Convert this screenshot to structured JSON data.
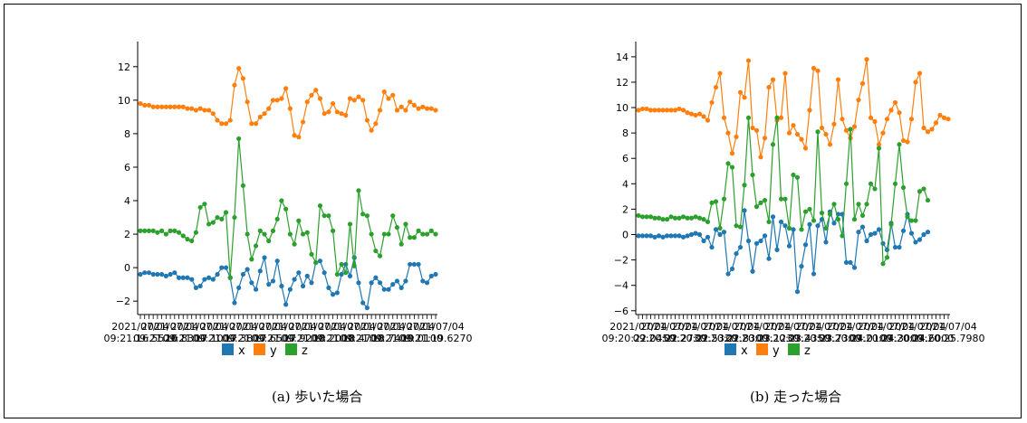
{
  "captions": {
    "left": "(a) 歩いた場合",
    "right": "(b) 走った場合"
  },
  "colors": {
    "x": "#1f77b4",
    "y": "#ff7f0e",
    "z": "#2ca02c"
  },
  "chart_data": [
    {
      "type": "line",
      "title": "",
      "xlabel": "",
      "ylabel": "",
      "ylim": [
        -2.8,
        13.5
      ],
      "yticks": [
        -2,
        0,
        2,
        4,
        6,
        8,
        10,
        12
      ],
      "x_tick_labels": [
        "2021/07/04\n09:21:16.5520",
        "2021/07/04\n09:21:16.8300",
        "2021/07/04\n09:21:17.1000",
        "2021/07/04\n09:21:17.3800",
        "2021/07/04\n09:21:17.6500",
        "2021/07/04\n09:21:17.9200",
        "2021/07/04\n09:21:18.2000",
        "2021/07/04\n09:21:18.4700",
        "2021/07/04\n09:21:18.7400",
        "2021/07/04\n09:21:19.0100",
        "2021/07/04\n09:21:19.6270"
      ],
      "legend_position": "bottom",
      "series": [
        {
          "name": "x",
          "color": "#1f77b4",
          "values": [
            -0.4,
            -0.3,
            -0.3,
            -0.4,
            -0.4,
            -0.4,
            -0.5,
            -0.4,
            -0.3,
            -0.6,
            -0.6,
            -0.6,
            -0.7,
            -1.2,
            -1.1,
            -0.7,
            -0.6,
            -0.7,
            -0.4,
            0.0,
            0.0,
            -0.6,
            -2.1,
            -1.2,
            -0.4,
            -0.1,
            -0.9,
            -1.3,
            -0.2,
            0.6,
            -1.0,
            -0.8,
            0.4,
            -1.1,
            -2.2,
            -1.3,
            -0.7,
            -0.3,
            -1.1,
            -0.5,
            -0.9,
            0.3,
            0.4,
            -0.3,
            -1.2,
            -1.6,
            -1.5,
            -0.4,
            0.2,
            -0.5,
            0.6,
            -0.9,
            -2.1,
            -2.4,
            -0.9,
            -0.6,
            -0.9,
            -1.3,
            -1.3,
            -1.0,
            -0.8,
            -1.2,
            -0.8,
            0.2,
            0.2,
            0.2,
            -0.8,
            -0.9,
            -0.5,
            -0.4
          ]
        },
        {
          "name": "y",
          "color": "#ff7f0e",
          "values": [
            9.8,
            9.7,
            9.7,
            9.6,
            9.6,
            9.6,
            9.6,
            9.6,
            9.6,
            9.6,
            9.6,
            9.5,
            9.5,
            9.4,
            9.5,
            9.4,
            9.4,
            9.2,
            8.8,
            8.6,
            8.6,
            8.8,
            10.9,
            11.9,
            11.3,
            9.9,
            8.6,
            8.6,
            9.0,
            9.2,
            9.5,
            10.0,
            10.0,
            10.1,
            10.7,
            9.5,
            7.9,
            7.8,
            8.7,
            9.9,
            10.3,
            10.6,
            10.1,
            9.2,
            9.3,
            9.8,
            9.3,
            9.2,
            9.1,
            10.1,
            10.0,
            10.2,
            10.0,
            8.8,
            8.2,
            8.6,
            9.4,
            10.5,
            10.1,
            10.3,
            9.4,
            9.6,
            9.4,
            9.9,
            9.7,
            9.5,
            9.6,
            9.5,
            9.5,
            9.4
          ]
        },
        {
          "name": "z",
          "color": "#2ca02c",
          "values": [
            2.2,
            2.2,
            2.2,
            2.2,
            2.1,
            2.2,
            2.0,
            2.2,
            2.2,
            2.1,
            1.9,
            1.7,
            1.6,
            2.1,
            3.6,
            3.8,
            2.6,
            2.7,
            3.0,
            2.9,
            3.3,
            -0.6,
            3.0,
            7.7,
            4.9,
            2.0,
            0.5,
            1.3,
            2.2,
            2.0,
            1.6,
            2.2,
            2.9,
            4.0,
            3.5,
            2.0,
            1.4,
            2.8,
            2.0,
            2.1,
            0.8,
            0.3,
            3.7,
            3.1,
            3.1,
            2.2,
            -0.4,
            0.2,
            -0.3,
            2.6,
            0.1,
            4.6,
            3.2,
            3.1,
            2.0,
            1.0,
            0.7,
            2.0,
            2.0,
            3.1,
            2.4,
            1.4,
            2.6,
            1.8,
            1.8,
            2.2,
            2.0,
            2.0,
            2.2,
            2.0
          ]
        }
      ]
    },
    {
      "type": "line",
      "title": "",
      "xlabel": "",
      "ylabel": "",
      "ylim": [
        -6.3,
        15.2
      ],
      "yticks": [
        -6,
        -4,
        -2,
        0,
        2,
        4,
        6,
        8,
        10,
        12,
        14
      ],
      "x_tick_labels": [
        "2021/07/04\n09:20:22.0450",
        "2021/07/04\n09:20:22.2730",
        "2021/07/04\n09:20:22.5320",
        "2021/07/04\n09:20:22.8300",
        "2021/07/04\n09:20:23.1230",
        "2021/07/04\n09:20:23.4350",
        "2021/07/04\n09:20:23.7300",
        "2021/07/04\n09:20:24.0100",
        "2021/07/04\n09:20:24.3000",
        "2021/07/04\n09:20:24.6000",
        "2021/07/04\n09:20:25.7980"
      ],
      "legend_position": "bottom",
      "series": [
        {
          "name": "x",
          "color": "#1f77b4",
          "values": [
            -0.1,
            -0.1,
            -0.1,
            -0.1,
            -0.2,
            -0.1,
            -0.2,
            -0.1,
            -0.1,
            -0.1,
            -0.1,
            -0.2,
            -0.1,
            0.0,
            0.1,
            0.0,
            -0.5,
            -0.2,
            -1.0,
            0.4,
            0.0,
            0.2,
            -3.1,
            -2.7,
            -1.5,
            -1.0,
            1.9,
            -0.5,
            -2.9,
            -0.7,
            -0.5,
            -0.1,
            -1.9,
            1.4,
            -1.2,
            1.0,
            0.7,
            -0.9,
            0.4,
            -4.5,
            -2.5,
            -0.8,
            0.8,
            -3.1,
            0.7,
            1.2,
            -0.6,
            1.8,
            0.9,
            1.6,
            1.6,
            -2.2,
            -2.2,
            -2.6,
            0.2,
            0.6,
            -0.5,
            0.0,
            0.1,
            0.4,
            -0.7,
            -1.2,
            0.9,
            -1.0,
            -1.0,
            0.3,
            1.6,
            0.1,
            -0.6,
            -0.4,
            0.0,
            0.2
          ]
        },
        {
          "name": "y",
          "color": "#ff7f0e",
          "values": [
            9.8,
            9.9,
            9.9,
            9.8,
            9.8,
            9.8,
            9.8,
            9.8,
            9.8,
            9.8,
            9.9,
            9.8,
            9.6,
            9.5,
            9.4,
            9.5,
            9.3,
            9.0,
            10.4,
            11.6,
            12.7,
            9.2,
            8.0,
            6.4,
            7.7,
            11.2,
            10.8,
            13.7,
            8.4,
            8.2,
            6.1,
            7.6,
            11.6,
            12.2,
            9.0,
            9.2,
            12.7,
            8.0,
            8.6,
            7.9,
            7.5,
            6.8,
            9.8,
            13.1,
            12.9,
            8.4,
            7.9,
            7.1,
            8.7,
            12.2,
            9.1,
            8.2,
            7.6,
            8.5,
            10.6,
            11.9,
            13.8,
            9.2,
            8.9,
            7.1,
            8.0,
            9.1,
            9.8,
            10.4,
            9.6,
            7.4,
            7.3,
            9.1,
            12.0,
            12.7,
            8.4,
            8.1,
            8.3,
            8.8,
            9.4,
            9.2,
            9.1
          ]
        },
        {
          "name": "z",
          "color": "#2ca02c",
          "values": [
            1.5,
            1.4,
            1.4,
            1.4,
            1.3,
            1.3,
            1.2,
            1.2,
            1.4,
            1.3,
            1.3,
            1.4,
            1.3,
            1.3,
            1.4,
            1.3,
            1.2,
            1.0,
            2.5,
            2.6,
            0.5,
            2.8,
            5.6,
            5.3,
            0.7,
            0.6,
            3.9,
            9.2,
            4.7,
            2.2,
            2.5,
            2.7,
            1.0,
            7.1,
            9.2,
            2.8,
            2.8,
            0.5,
            4.7,
            4.5,
            0.4,
            1.8,
            2.0,
            1.1,
            8.1,
            1.7,
            0.5,
            1.6,
            2.4,
            1.2,
            -0.1,
            4.0,
            8.3,
            1.2,
            2.4,
            1.5,
            2.4,
            4.0,
            3.6,
            6.8,
            -2.3,
            -1.8,
            0.8,
            4.0,
            7.1,
            3.7,
            1.4,
            1.1,
            1.1,
            3.4,
            3.6,
            2.7
          ]
        }
      ]
    }
  ]
}
